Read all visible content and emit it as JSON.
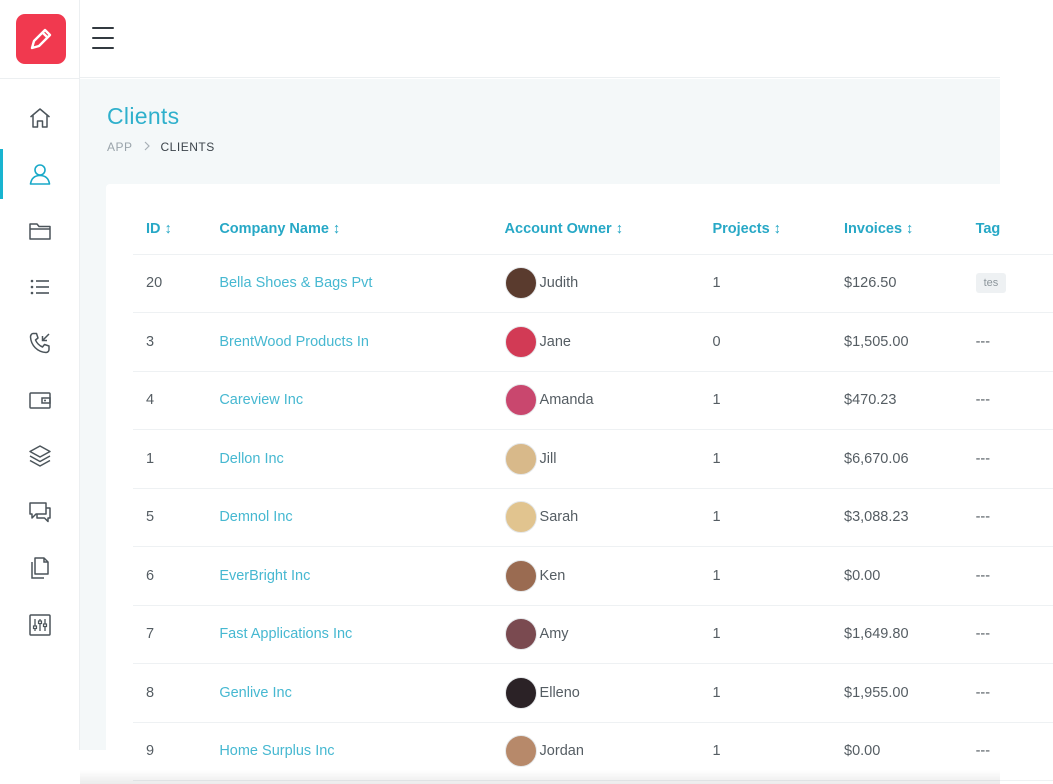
{
  "app": {
    "brand_color": "#f1394f",
    "accent_color": "#18b4d0",
    "logo_icon": "pencil-icon"
  },
  "sidebar": {
    "items": [
      {
        "name": "home",
        "icon": "home-icon",
        "active": false
      },
      {
        "name": "clients",
        "icon": "user-icon",
        "active": true
      },
      {
        "name": "projects",
        "icon": "folder-icon",
        "active": false
      },
      {
        "name": "tasks",
        "icon": "list-icon",
        "active": false
      },
      {
        "name": "leads",
        "icon": "phone-icon",
        "active": false
      },
      {
        "name": "sales",
        "icon": "wallet-icon",
        "active": false
      },
      {
        "name": "layers",
        "icon": "layers-icon",
        "active": false
      },
      {
        "name": "tickets",
        "icon": "chat-icon",
        "active": false
      },
      {
        "name": "files",
        "icon": "files-icon",
        "active": false
      },
      {
        "name": "settings",
        "icon": "sliders-icon",
        "active": false
      }
    ]
  },
  "header": {
    "menu_icon": "hamburger-icon"
  },
  "page": {
    "title": "Clients",
    "breadcrumb": {
      "root": "APP",
      "separator": ">",
      "current": "CLIENTS"
    }
  },
  "table": {
    "columns": [
      {
        "key": "id",
        "label": "ID ↕"
      },
      {
        "key": "company",
        "label": "Company Name ↕"
      },
      {
        "key": "owner",
        "label": "Account Owner ↕"
      },
      {
        "key": "projects",
        "label": "Projects ↕"
      },
      {
        "key": "invoices",
        "label": "Invoices ↕"
      },
      {
        "key": "tags",
        "label": "Tag"
      }
    ],
    "rows": [
      {
        "id": "20",
        "company": "Bella Shoes & Bags Pvt",
        "owner": "Judith",
        "projects": "1",
        "invoices": "$126.50",
        "tags": "tes",
        "avatar_color": "#5a3b2e"
      },
      {
        "id": "3",
        "company": "BrentWood Products In",
        "owner": "Jane",
        "projects": "0",
        "invoices": "$1,505.00",
        "tags": "---",
        "avatar_color": "#d23a55"
      },
      {
        "id": "4",
        "company": "Careview Inc",
        "owner": "Amanda",
        "projects": "1",
        "invoices": "$470.23",
        "tags": "---",
        "avatar_color": "#c9476e"
      },
      {
        "id": "1",
        "company": "Dellon Inc",
        "owner": "Jill",
        "projects": "1",
        "invoices": "$6,670.06",
        "tags": "---",
        "avatar_color": "#d8b98a"
      },
      {
        "id": "5",
        "company": "Demnol Inc",
        "owner": "Sarah",
        "projects": "1",
        "invoices": "$3,088.23",
        "tags": "---",
        "avatar_color": "#e1c48f"
      },
      {
        "id": "6",
        "company": "EverBright Inc",
        "owner": "Ken",
        "projects": "1",
        "invoices": "$0.00",
        "tags": "---",
        "avatar_color": "#9a6b51"
      },
      {
        "id": "7",
        "company": "Fast Applications Inc",
        "owner": "Amy",
        "projects": "1",
        "invoices": "$1,649.80",
        "tags": "---",
        "avatar_color": "#7a4a50"
      },
      {
        "id": "8",
        "company": "Genlive Inc",
        "owner": "Elleno",
        "projects": "1",
        "invoices": "$1,955.00",
        "tags": "---",
        "avatar_color": "#2b2226"
      },
      {
        "id": "9",
        "company": "Home Surplus Inc",
        "owner": "Jordan",
        "projects": "1",
        "invoices": "$0.00",
        "tags": "---",
        "avatar_color": "#b7896a"
      }
    ]
  }
}
